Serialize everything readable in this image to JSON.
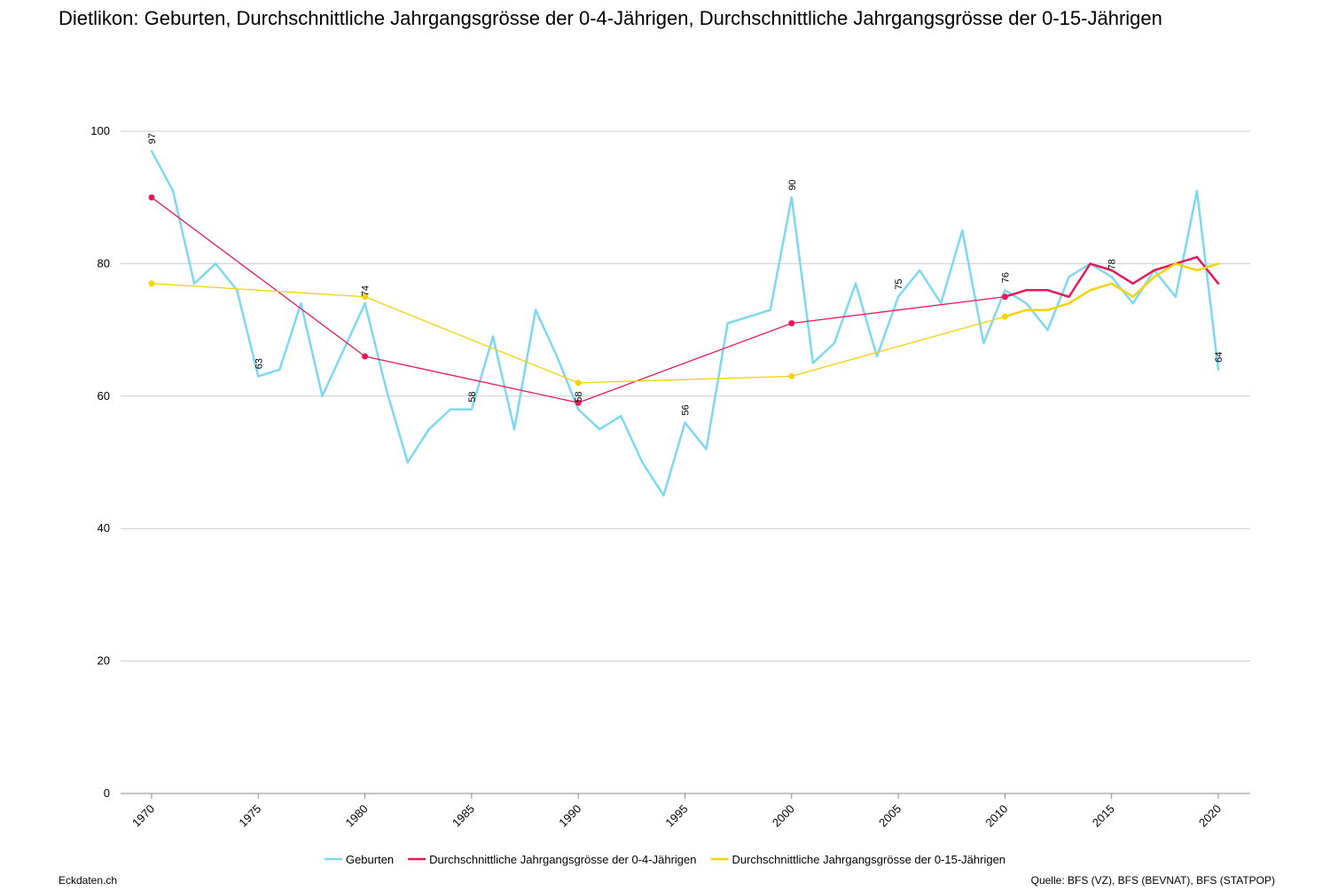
{
  "chart_data": {
    "type": "line",
    "title": "Dietlikon: Geburten, Durchschnittliche Jahrgangsgrösse der 0-4-Jährigen, Durchschnittliche Jahrgangsgrösse der 0-15-Jährigen",
    "xlim": [
      1970,
      2020
    ],
    "xticks": [
      1970,
      1975,
      1980,
      1985,
      1990,
      1995,
      2000,
      2005,
      2010,
      2015,
      2020
    ],
    "ylim": [
      0,
      100
    ],
    "yticks": [
      0,
      20,
      40,
      60,
      80,
      100
    ],
    "grid": true,
    "legend": "bottom",
    "data_labels_every": 5,
    "series": [
      {
        "name": "Geburten",
        "color": "#7dd8f0",
        "x": [
          1970,
          1971,
          1972,
          1973,
          1974,
          1975,
          1976,
          1977,
          1978,
          1979,
          1980,
          1981,
          1982,
          1983,
          1984,
          1985,
          1986,
          1987,
          1988,
          1989,
          1990,
          1991,
          1992,
          1993,
          1994,
          1995,
          1996,
          1997,
          1998,
          1999,
          2000,
          2001,
          2002,
          2003,
          2004,
          2005,
          2006,
          2007,
          2008,
          2009,
          2010,
          2011,
          2012,
          2013,
          2014,
          2015,
          2016,
          2017,
          2018,
          2019,
          2020
        ],
        "values": [
          97,
          91,
          77,
          80,
          76,
          63,
          64,
          74,
          60,
          67,
          74,
          61,
          50,
          55,
          58,
          58,
          69,
          55,
          73,
          66,
          58,
          55,
          57,
          50,
          45,
          56,
          52,
          71,
          72,
          73,
          90,
          65,
          68,
          77,
          66,
          75,
          79,
          74,
          85,
          68,
          76,
          74,
          70,
          78,
          80,
          78,
          74,
          79,
          75,
          91,
          64
        ]
      },
      {
        "name": "Durchschnittliche Jahrgangsgrösse der 0-4-Jährigen",
        "color": "#e6195a",
        "x": [
          1970,
          1980,
          1990,
          2000,
          2010,
          2011,
          2012,
          2013,
          2014,
          2015,
          2016,
          2017,
          2018,
          2019,
          2020
        ],
        "values": [
          90,
          66,
          59,
          71,
          75,
          76,
          76,
          75,
          80,
          79,
          77,
          79,
          80,
          81,
          77
        ]
      },
      {
        "name": "Durchschnittliche Jahrgangsgrösse der 0-15-Jährigen",
        "color": "#f5d20a",
        "x": [
          1970,
          1980,
          1990,
          2000,
          2010,
          2011,
          2012,
          2013,
          2014,
          2015,
          2016,
          2017,
          2018,
          2019,
          2020
        ],
        "values": [
          77,
          75,
          62,
          63,
          72,
          73,
          73,
          74,
          76,
          77,
          75,
          78,
          80,
          79,
          80
        ]
      }
    ],
    "footer_left": "Eckdaten.ch",
    "footer_right": "Quelle: BFS (VZ), BFS (BEVNAT), BFS (STATPOP)"
  }
}
